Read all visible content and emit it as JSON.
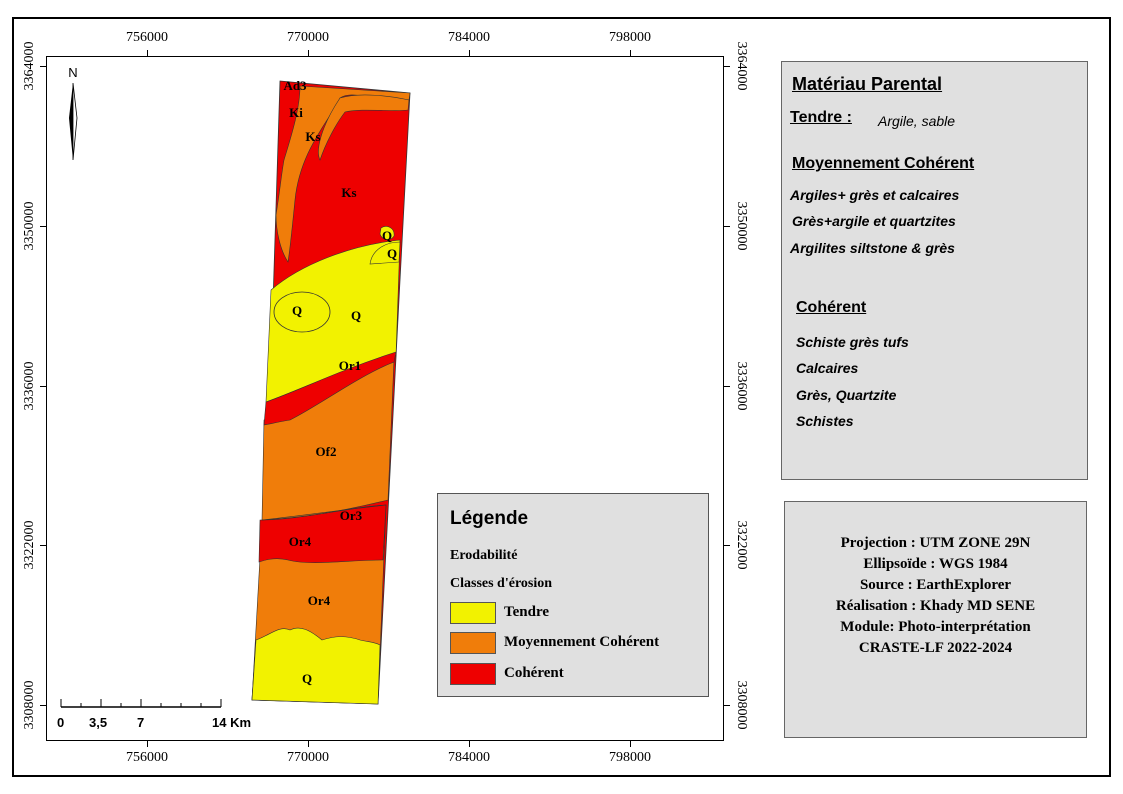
{
  "map": {
    "x_ticks": [
      "756000",
      "770000",
      "784000",
      "798000"
    ],
    "y_ticks": [
      "3364000",
      "3350000",
      "3336000",
      "3322000",
      "3308000"
    ],
    "north_label": "N",
    "colors": {
      "tendre": "#f2f200",
      "moyen": "#f07d0a",
      "coherent": "#ee0000"
    },
    "labels": [
      "Ad3",
      "Ki",
      "Ks",
      "Ks",
      "Q",
      "Q",
      "Q",
      "Q",
      "Or1",
      "Of2",
      "Or3",
      "Or4",
      "Or4",
      "Q"
    ]
  },
  "scalebar": {
    "labels": [
      "0",
      "3,5",
      "7",
      "14 Km"
    ]
  },
  "legend": {
    "title": "Légende",
    "line1": "Erodabilité",
    "line2": "Classes d'érosion",
    "items": [
      {
        "label": "Tendre",
        "color": "#f2f200"
      },
      {
        "label": "Moyennement Cohérent",
        "color": "#f07d0a"
      },
      {
        "label": "Cohérent",
        "color": "#ee0000"
      }
    ]
  },
  "materiau": {
    "title": "Matériau Parental",
    "tendre_heading": "Tendre :",
    "tendre_text": "Argile, sable",
    "moyen_heading": "Moyennement Cohérent",
    "moyen_items": [
      "Argiles+ grès et calcaires",
      "Grès+argile et quartzites",
      "Argilites siltstone & grès"
    ],
    "coherent_heading": "Cohérent",
    "coherent_items": [
      "Schiste grès tufs",
      "Calcaires",
      "Grès, Quartzite",
      "Schistes"
    ]
  },
  "info": {
    "lines": [
      "Projection : UTM ZONE 29N",
      "Ellipsoïde : WGS 1984",
      "Source : EarthExplorer",
      "Réalisation : Khady MD SENE",
      "Module: Photo-interprétation",
      "CRASTE-LF 2022-2024"
    ]
  }
}
